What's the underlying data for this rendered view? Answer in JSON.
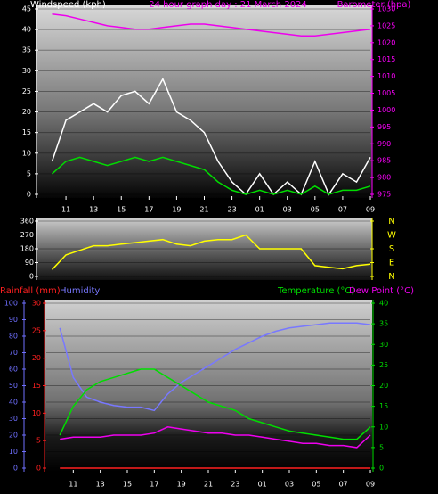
{
  "chart_data": [
    {
      "type": "line",
      "title": "24 hour graph day : 21 March 2024",
      "ylabel": "Windspeed (kph)",
      "y2label": "Barometer (hpa)",
      "x": [
        10,
        11,
        12,
        13,
        14,
        15,
        16,
        17,
        18,
        19,
        20,
        21,
        22,
        23,
        24,
        25,
        26,
        27,
        28,
        29,
        30,
        31,
        32,
        33
      ],
      "xlim": [
        9,
        33
      ],
      "xticks": [
        11,
        13,
        15,
        17,
        19,
        21,
        23,
        {
          "value": 25,
          "label": "01"
        },
        {
          "value": 27,
          "label": "03"
        },
        {
          "value": 29,
          "label": "05"
        },
        {
          "value": 31,
          "label": "07"
        },
        {
          "value": 33,
          "label": "09"
        }
      ],
      "ylim": [
        0,
        45
      ],
      "yticks": [
        0,
        5,
        10,
        15,
        20,
        25,
        30,
        35,
        40,
        45
      ],
      "y2lim": [
        975,
        1030
      ],
      "y2ticks": [
        975,
        980,
        985,
        990,
        995,
        1000,
        1005,
        1010,
        1015,
        1020,
        1025,
        1030
      ],
      "axis_colors": {
        "y": "#ffffff",
        "y2": "#ff00ff"
      },
      "grid": true,
      "series": [
        {
          "color": "#ffffff",
          "values": [
            8,
            18,
            20,
            22,
            20,
            24,
            25,
            22,
            28,
            20,
            18,
            15,
            8,
            3,
            0,
            5,
            0,
            3,
            0,
            8,
            0,
            5,
            3,
            9
          ]
        },
        {
          "color": "#00dd00",
          "values": [
            5,
            8,
            9,
            8,
            7,
            8,
            9,
            8,
            9,
            8,
            7,
            6,
            3,
            1,
            0,
            1,
            0,
            1,
            0,
            2,
            0,
            1,
            1,
            2
          ]
        },
        {
          "color": "#ee00ee",
          "axis": "y2",
          "values": [
            1028.5,
            1028,
            1027,
            1026,
            1025,
            1024.5,
            1024,
            1024,
            1024.5,
            1025,
            1025.5,
            1025.5,
            1025,
            1024.5,
            1024,
            1023.5,
            1023,
            1022.5,
            1022,
            1022,
            1022.5,
            1023,
            1023.5,
            1024
          ]
        }
      ]
    },
    {
      "type": "line",
      "x": [
        10,
        11,
        12,
        13,
        14,
        15,
        16,
        17,
        18,
        19,
        20,
        21,
        22,
        23,
        24,
        25,
        26,
        27,
        28,
        29,
        30,
        31,
        32,
        33
      ],
      "xlim": [
        9,
        33
      ],
      "ylim": [
        0,
        360
      ],
      "yticks": [
        0,
        90,
        180,
        270,
        360
      ],
      "y2lim": [
        0,
        360
      ],
      "y2ticks": [
        {
          "value": 360,
          "label": "N"
        },
        {
          "value": 270,
          "label": "W"
        },
        {
          "value": 180,
          "label": "S"
        },
        {
          "value": 90,
          "label": "E"
        },
        {
          "value": 0,
          "label": "N"
        }
      ],
      "axis_colors": {
        "y": "#ffffff",
        "y2": "#ffff00"
      },
      "grid": true,
      "series": [
        {
          "color": "#ffff00",
          "values": [
            45,
            140,
            170,
            200,
            200,
            210,
            220,
            230,
            240,
            210,
            200,
            230,
            240,
            240,
            270,
            180,
            180,
            180,
            180,
            70,
            60,
            50,
            70,
            80
          ]
        }
      ]
    },
    {
      "type": "line",
      "x": [
        10,
        11,
        12,
        13,
        14,
        15,
        16,
        17,
        18,
        19,
        20,
        21,
        22,
        23,
        24,
        25,
        26,
        27,
        28,
        29,
        30,
        31,
        32,
        33
      ],
      "xlim": [
        9,
        33
      ],
      "xticks": [
        11,
        13,
        15,
        17,
        19,
        21,
        23,
        {
          "value": 25,
          "label": "01"
        },
        {
          "value": 27,
          "label": "03"
        },
        {
          "value": 29,
          "label": "05"
        },
        {
          "value": 31,
          "label": "07"
        },
        {
          "value": 33,
          "label": "09"
        }
      ],
      "ylim": [
        0,
        100
      ],
      "yticks": [
        0,
        10,
        20,
        30,
        40,
        50,
        60,
        70,
        80,
        90,
        100
      ],
      "y3lim": [
        0,
        30
      ],
      "y3ticks": [
        0,
        5,
        10,
        15,
        20,
        25,
        30
      ],
      "y2lim": [
        0,
        40
      ],
      "y2ticks": [
        0,
        5,
        10,
        15,
        20,
        25,
        30,
        35,
        40
      ],
      "axis_colors": {
        "y": "#6f6fff",
        "y3": "#ff2020",
        "y2": "#00dd00"
      },
      "grid": true,
      "series": [
        {
          "name": "Rainfall (mm)",
          "color": "#ff2020",
          "axis": "y3",
          "values": [
            0,
            0,
            0,
            0,
            0,
            0,
            0,
            0,
            0,
            0,
            0,
            0,
            0,
            0,
            0,
            0,
            0,
            0,
            0,
            0,
            0,
            0,
            0,
            0
          ]
        },
        {
          "name": "Humidity",
          "color": "#7878ff",
          "values": [
            85,
            55,
            43,
            40,
            38,
            37,
            37,
            35,
            45,
            52,
            57,
            62,
            67,
            72,
            76,
            80,
            83,
            85,
            86,
            87,
            88,
            88,
            88,
            87
          ]
        },
        {
          "name": "Temperature (°C)",
          "color": "#00dd00",
          "axis": "y2",
          "values": [
            8,
            15,
            19,
            21,
            22,
            23,
            24,
            24,
            22,
            20,
            18,
            16,
            15,
            14,
            12,
            11,
            10,
            9,
            8.5,
            8,
            7.5,
            7,
            7,
            10
          ]
        },
        {
          "name": "Dew Point (°C)",
          "color": "#ee00ee",
          "axis": "y2",
          "values": [
            7,
            7.5,
            7.5,
            7.5,
            8,
            8,
            8,
            8.5,
            10,
            9.5,
            9,
            8.5,
            8.5,
            8,
            8,
            7.5,
            7,
            6.5,
            6,
            6,
            5.5,
            5.5,
            5,
            8
          ]
        }
      ]
    }
  ]
}
